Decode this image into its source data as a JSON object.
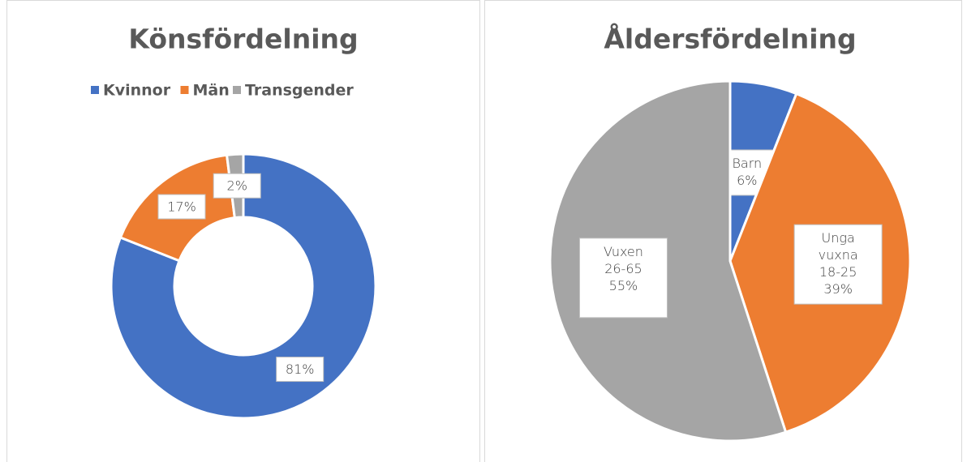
{
  "chart_data": [
    {
      "type": "donut",
      "title": "Könsfördelning",
      "categories": [
        "Kvinnor",
        "Män",
        "Transgender"
      ],
      "values": [
        81,
        17,
        2
      ],
      "value_labels": [
        "81%",
        "17%",
        "2%"
      ],
      "colors": [
        "#4472c4",
        "#ed7d31",
        "#a5a5a5"
      ],
      "legend": "top"
    },
    {
      "type": "pie",
      "title": "Åldersfördelning",
      "categories": [
        "Barn",
        "Unga vuxna 18-25",
        "Vuxen 26-65"
      ],
      "values": [
        6,
        39,
        55
      ],
      "value_labels": [
        "6%",
        "39%",
        "55%"
      ],
      "colors": [
        "#4472c4",
        "#ed7d31",
        "#a5a5a5"
      ]
    }
  ]
}
